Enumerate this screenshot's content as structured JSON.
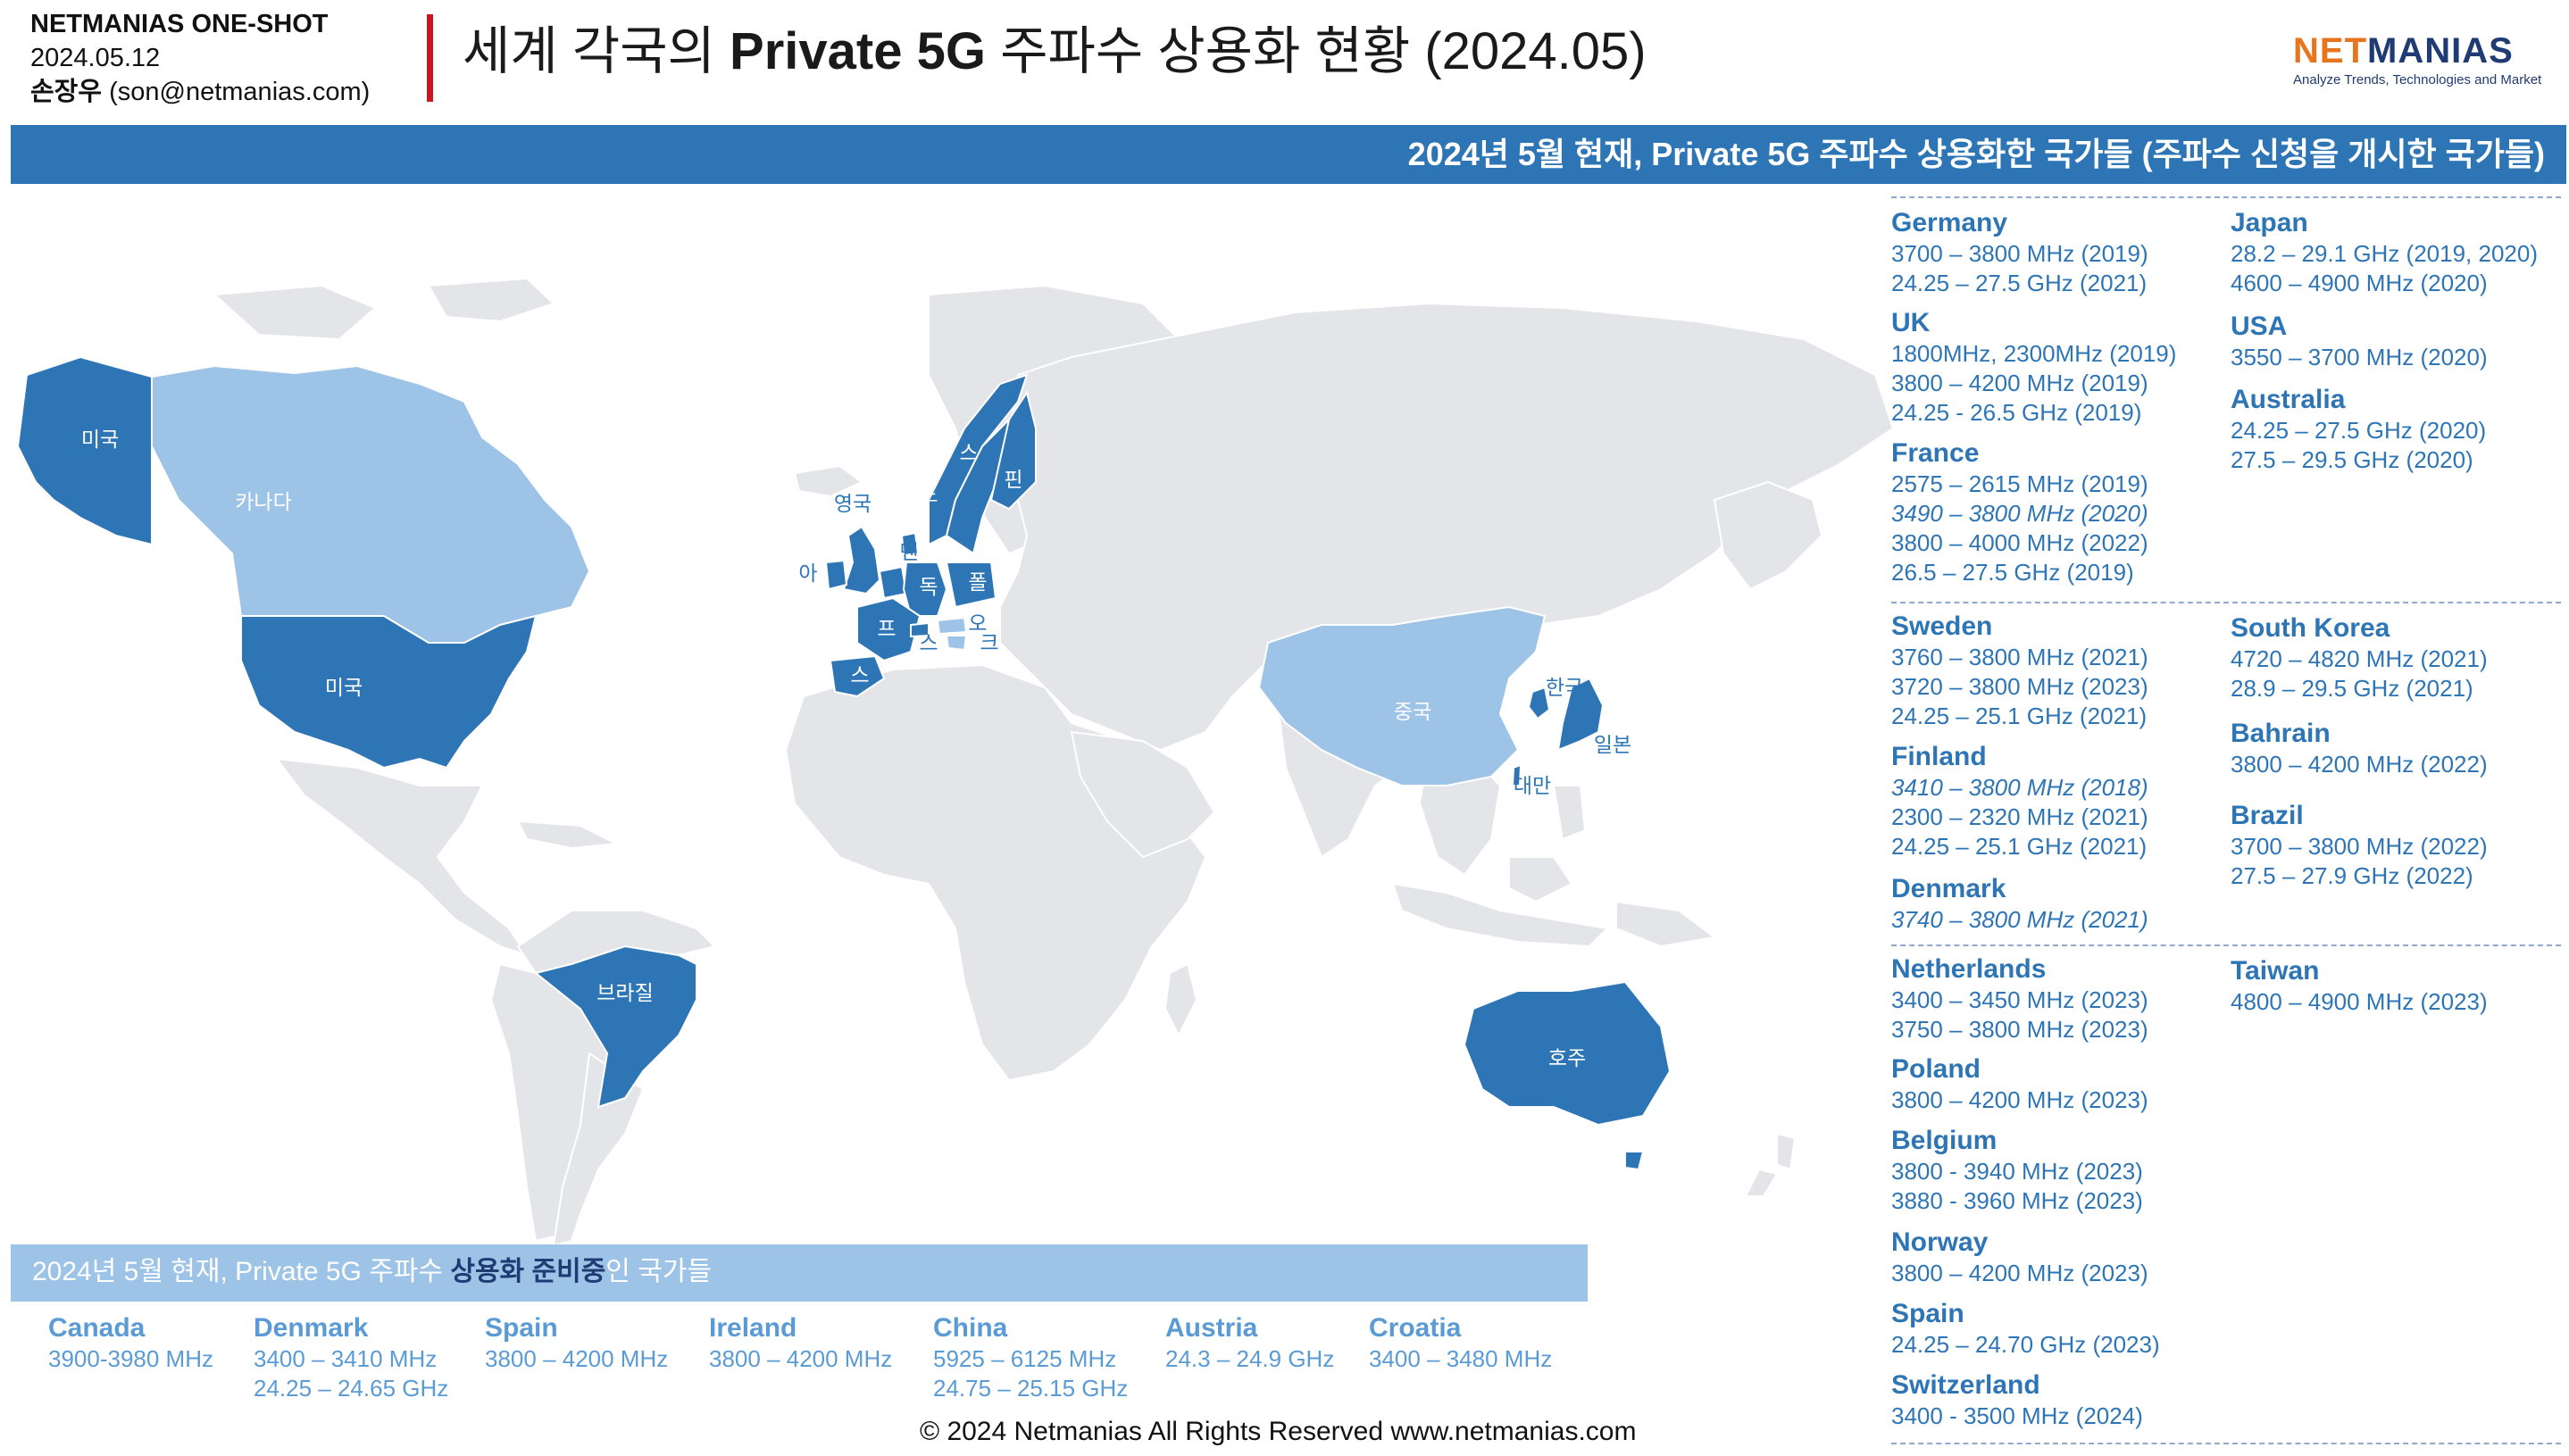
{
  "header": {
    "brand": "NETMANIAS ONE-SHOT",
    "date": "2024.05.12",
    "author_name": "손장우",
    "author_email": "(son@netmanias.com)",
    "title_pre": "세계 각국의 ",
    "title_bold": "Private 5G",
    "title_post": " 주파수 상용화 현황 (2024.05)"
  },
  "logo": {
    "net": "NET",
    "manias": "MANIAS",
    "tagline": "Analyze Trends, Technologies and Market"
  },
  "top_banner": "2024년 5월 현재, Private 5G 주파수 상용화한 국가들 (주파수 신청을 개시한 국가들)",
  "map": {
    "labels": {
      "us_alaska": "미국",
      "canada": "카나다",
      "us": "미국",
      "brazil": "브라질",
      "uk": "영국",
      "ireland": "아",
      "norway": "노",
      "sweden": "스",
      "finland": "핀",
      "denmark": "덴",
      "germany": "독",
      "poland": "폴",
      "france": "프",
      "spain": "스",
      "switzerland": "스",
      "austria": "오",
      "croatia": "크",
      "china": "중국",
      "korea": "한국",
      "japan": "일본",
      "taiwan": "대만",
      "australia": "호주"
    },
    "colors": {
      "commercial": "#2e75b6",
      "preparing": "#9dc3e6",
      "other": "#e4e5e9"
    }
  },
  "right_panel": {
    "groups": [
      {
        "left": [
          {
            "name": "Germany",
            "freqs": [
              {
                "t": "3700 – 3800 MHz (2019)"
              },
              {
                "t": "24.25 – 27.5 GHz (2021)"
              }
            ]
          },
          {
            "name": "UK",
            "freqs": [
              {
                "t": "1800MHz, 2300MHz (2019)"
              },
              {
                "t": "3800 – 4200 MHz (2019)"
              },
              {
                "t": "24.25 - 26.5 GHz (2019)"
              }
            ]
          },
          {
            "name": "France",
            "freqs": [
              {
                "t": "2575 – 2615 MHz (2019)"
              },
              {
                "t": "3490 – 3800 MHz (2020)",
                "i": true
              },
              {
                "t": "3800 – 4000 MHz (2022)"
              },
              {
                "t": "26.5 – 27.5 GHz (2019)"
              }
            ]
          }
        ],
        "right": [
          {
            "name": "Japan",
            "freqs": [
              {
                "t": "28.2 – 29.1 GHz (2019, 2020)"
              },
              {
                "t": "4600 – 4900 MHz (2020)"
              }
            ]
          },
          {
            "name": "USA",
            "freqs": [
              {
                "t": "3550 – 3700 MHz (2020)"
              }
            ]
          },
          {
            "name": "Australia",
            "freqs": [
              {
                "t": "24.25 – 27.5 GHz (2020)"
              },
              {
                "t": "27.5 – 29.5 GHz (2020)"
              }
            ]
          }
        ]
      },
      {
        "left": [
          {
            "name": "Sweden",
            "freqs": [
              {
                "t": "3760 – 3800 MHz (2021)"
              },
              {
                "t": "3720 – 3800 MHz (2023)"
              },
              {
                "t": "24.25 – 25.1 GHz (2021)"
              }
            ]
          },
          {
            "name": "Finland",
            "freqs": [
              {
                "t": "3410 – 3800 MHz (2018)",
                "i": true
              },
              {
                "t": "2300 – 2320 MHz (2021)"
              },
              {
                "t": "24.25 – 25.1 GHz (2021)"
              }
            ]
          },
          {
            "name": "Denmark",
            "freqs": [
              {
                "t": "3740 – 3800 MHz (2021)",
                "i": true
              }
            ]
          }
        ],
        "right": [
          {
            "name": "South Korea",
            "freqs": [
              {
                "t": "4720 – 4820 MHz (2021)"
              },
              {
                "t": "28.9 – 29.5 GHz (2021)"
              }
            ]
          },
          {
            "name": "Bahrain",
            "freqs": [
              {
                "t": "3800 – 4200 MHz (2022)"
              }
            ]
          },
          {
            "name": "Brazil",
            "freqs": [
              {
                "t": "3700 – 3800 MHz (2022)"
              },
              {
                "t": "27.5 – 27.9 GHz (2022)"
              }
            ]
          }
        ]
      },
      {
        "left": [
          {
            "name": "Netherlands",
            "freqs": [
              {
                "t": "3400 – 3450 MHz (2023)"
              },
              {
                "t": "3750 – 3800 MHz (2023)"
              }
            ]
          },
          {
            "name": "Poland",
            "freqs": [
              {
                "t": "3800 – 4200 MHz (2023)"
              }
            ]
          },
          {
            "name": "Belgium",
            "freqs": [
              {
                "t": "3800 - 3940 MHz (2023)"
              },
              {
                "t": "3880 - 3960 MHz (2023)"
              }
            ]
          },
          {
            "name": "Norway",
            "freqs": [
              {
                "t": "3800 – 4200 MHz (2023)"
              }
            ]
          },
          {
            "name": "Spain",
            "freqs": [
              {
                "t": "24.25 – 24.70 GHz (2023)"
              }
            ]
          },
          {
            "name": "Switzerland",
            "freqs": [
              {
                "t": "3400 - 3500 MHz (2024)"
              }
            ]
          }
        ],
        "right": [
          {
            "name": "Taiwan",
            "freqs": [
              {
                "t": "4800 – 4900 MHz (2023)"
              }
            ]
          }
        ]
      }
    ]
  },
  "bottom_banner": {
    "pre": "2024년 5월 현재, Private 5G 주파수 ",
    "bold": "상용화 준비중",
    "post": "인 국가들"
  },
  "preparing": [
    {
      "name": "Canada",
      "freqs": [
        "3900-3980 MHz"
      ]
    },
    {
      "name": "Denmark",
      "freqs": [
        "3400 – 3410 MHz",
        "24.25 – 24.65 GHz"
      ]
    },
    {
      "name": "Spain",
      "freqs": [
        "3800 – 4200 MHz"
      ]
    },
    {
      "name": "Ireland",
      "freqs": [
        "3800 – 4200 MHz"
      ]
    },
    {
      "name": "China",
      "freqs": [
        "5925 – 6125 MHz",
        "24.75 – 25.15 GHz"
      ]
    },
    {
      "name": "Austria",
      "freqs": [
        "24.3 – 24.9 GHz"
      ]
    },
    {
      "name": "Croatia",
      "freqs": [
        "3400 – 3480 MHz"
      ]
    }
  ],
  "footer": "© 2024 Netmanias All Rights Reserved www.netmanias.com"
}
